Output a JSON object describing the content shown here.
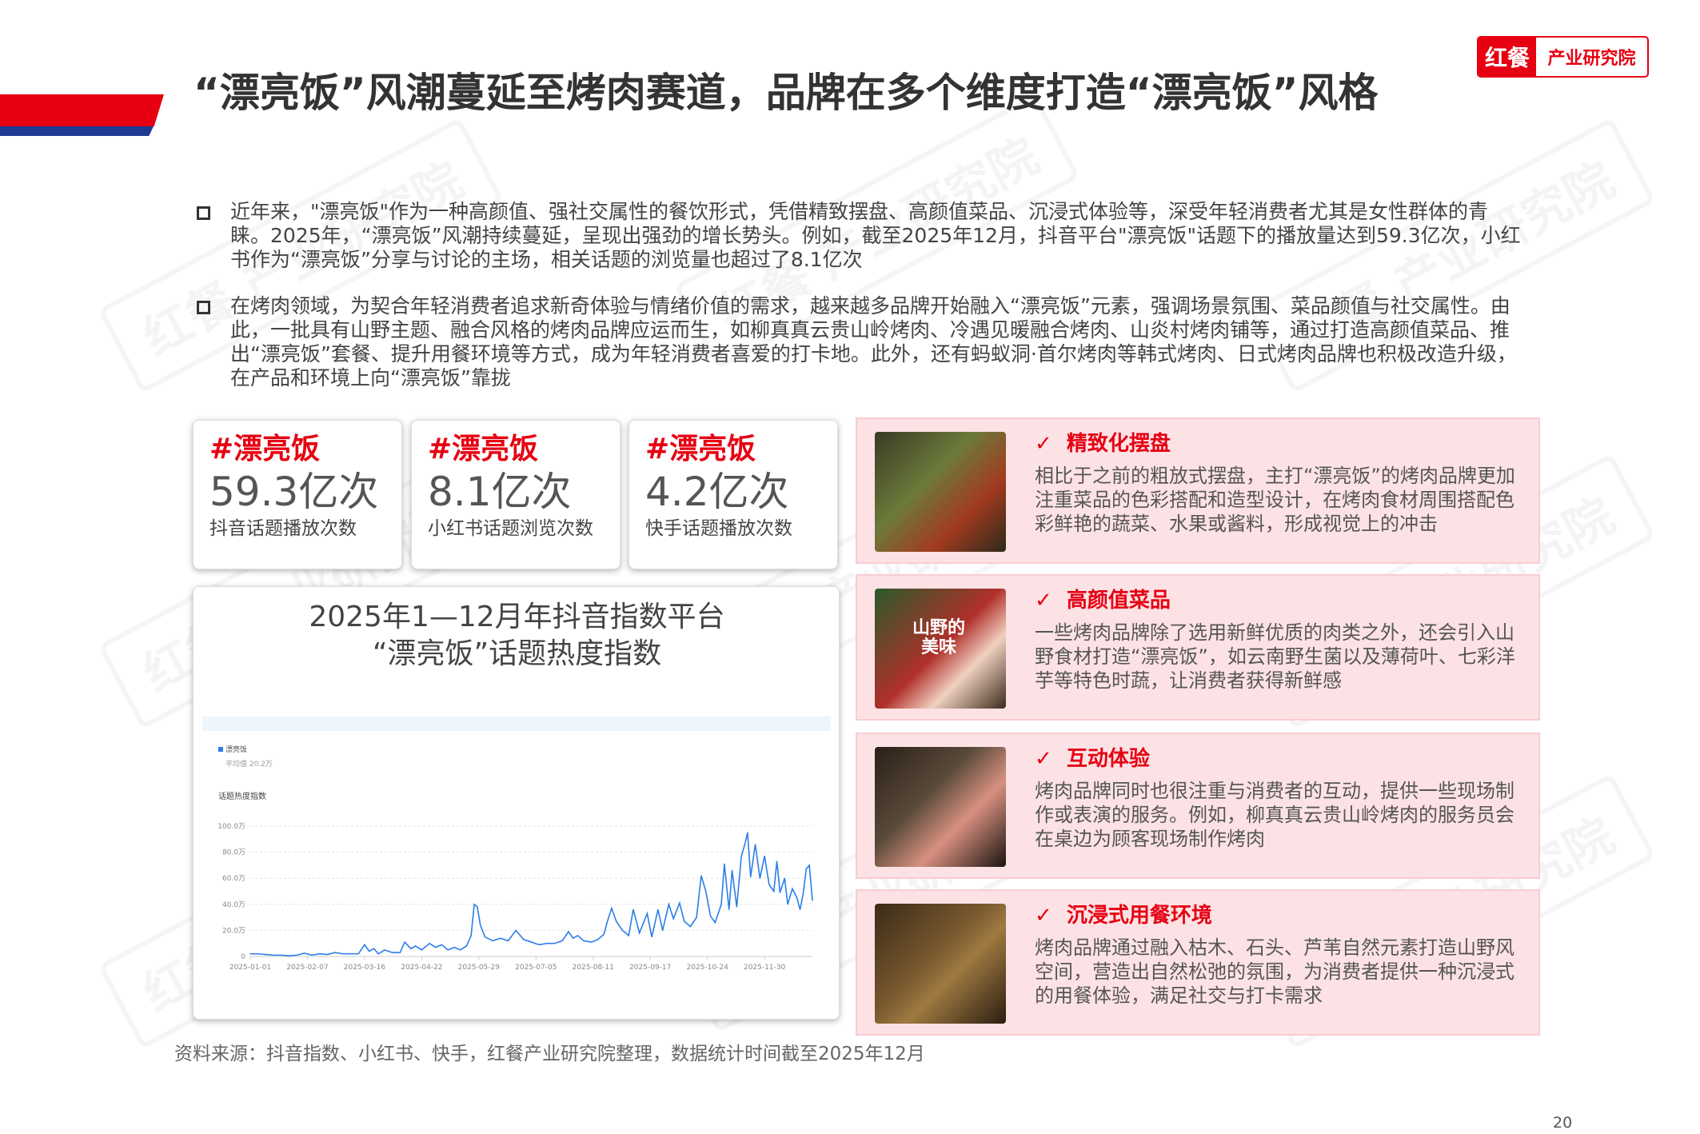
{
  "header": {
    "title": "“漂亮饭”风潮蔓延至烤肉赛道，品牌在多个维度打造“漂亮饭”风格",
    "logo": {
      "left": "红餐",
      "right": "产业研究院"
    }
  },
  "watermark": "红餐 产业研究院",
  "bullets": [
    "近年来，\"漂亮饭\"作为一种高颜值、强社交属性的餐饮形式，凭借精致摆盘、高颜值菜品、沉浸式体验等，深受年轻消费者尤其是女性群体的青睐。2025年，“漂亮饭”风潮持续蔓延，呈现出强劲的增长势头。例如，截至2025年12月，抖音平台\"漂亮饭\"话题下的播放量达到59.3亿次，小红书作为“漂亮饭”分享与讨论的主场，相关话题的浏览量也超过了8.1亿次",
    "在烤肉领域，为契合年轻消费者追求新奇体验与情绪价值的需求，越来越多品牌开始融入“漂亮饭”元素，强调场景氛围、菜品颜值与社交属性。由此，一批具有山野主题、融合风格的烤肉品牌应运而生，如柳真真云贵山岭烤肉、冷遇见暖融合烤肉、山炎村烤肉铺等，通过打造高颜值菜品、推出“漂亮饭”套餐、提升用餐环境等方式，成为年轻消费者喜爱的打卡地。此外，还有蚂蚁洞·首尔烤肉等韩式烤肉、日式烤肉品牌也积极改造升级，在产品和环境上向“漂亮饭”靠拢"
  ],
  "stats": [
    {
      "tag": "#漂亮饭",
      "value": "59.3亿次",
      "label": "抖音话题播放次数"
    },
    {
      "tag": "#漂亮饭",
      "value": "8.1亿次",
      "label": "小红书话题浏览次数"
    },
    {
      "tag": "#漂亮饭",
      "value": "4.2亿次",
      "label": "快手话题播放次数"
    }
  ],
  "chart": {
    "title_line1": "2025年1—12月年抖音指数平台",
    "title_line2": "“漂亮饭”话题热度指数"
  },
  "chart_data": {
    "type": "line",
    "legend": "漂亮饭",
    "average": "平均值 20.2万",
    "ylabel": "话题热度指数",
    "series_color": "#2b7de9",
    "ylim": [
      0,
      100
    ],
    "yunit": "万",
    "yticks": [
      "0",
      "20.0万",
      "40.0万",
      "60.0万",
      "80.0万",
      "100.0万"
    ],
    "xlim": [
      "2025-01-01",
      "2025-12-31"
    ],
    "xticks": [
      "2025-01-01",
      "2025-02-07",
      "2025-03-16",
      "2025-04-22",
      "2025-05-29",
      "2025-07-05",
      "2025-08-11",
      "2025-09-17",
      "2025-10-24",
      "2025-11-30"
    ],
    "grid": true,
    "x": [
      "2025-01-01",
      "2025-01-06",
      "2025-01-11",
      "2025-01-16",
      "2025-01-21",
      "2025-01-26",
      "2025-01-31",
      "2025-02-05",
      "2025-02-10",
      "2025-02-15",
      "2025-02-20",
      "2025-02-25",
      "2025-03-02",
      "2025-03-07",
      "2025-03-12",
      "2025-03-16",
      "2025-03-19",
      "2025-03-22",
      "2025-03-25",
      "2025-03-29",
      "2025-04-03",
      "2025-04-08",
      "2025-04-11",
      "2025-04-15",
      "2025-04-18",
      "2025-04-22",
      "2025-04-27",
      "2025-05-01",
      "2025-05-05",
      "2025-05-09",
      "2025-05-13",
      "2025-05-17",
      "2025-05-21",
      "2025-05-24",
      "2025-05-26",
      "2025-05-28",
      "2025-05-30",
      "2025-06-02",
      "2025-06-07",
      "2025-06-12",
      "2025-06-17",
      "2025-06-22",
      "2025-06-27",
      "2025-07-02",
      "2025-07-07",
      "2025-07-12",
      "2025-07-17",
      "2025-07-22",
      "2025-07-26",
      "2025-07-29",
      "2025-08-01",
      "2025-08-05",
      "2025-08-10",
      "2025-08-14",
      "2025-08-18",
      "2025-08-20",
      "2025-08-23",
      "2025-08-26",
      "2025-08-30",
      "2025-09-03",
      "2025-09-06",
      "2025-09-10",
      "2025-09-15",
      "2025-09-18",
      "2025-09-22",
      "2025-09-25",
      "2025-09-29",
      "2025-10-02",
      "2025-10-06",
      "2025-10-09",
      "2025-10-13",
      "2025-10-17",
      "2025-10-20",
      "2025-10-23",
      "2025-10-26",
      "2025-10-29",
      "2025-11-02",
      "2025-11-04",
      "2025-11-07",
      "2025-11-09",
      "2025-11-12",
      "2025-11-15",
      "2025-11-17",
      "2025-11-19",
      "2025-11-21",
      "2025-11-24",
      "2025-11-27",
      "2025-11-30",
      "2025-12-03",
      "2025-12-06",
      "2025-12-08",
      "2025-12-10",
      "2025-12-13",
      "2025-12-15",
      "2025-12-18",
      "2025-12-21",
      "2025-12-23",
      "2025-12-25",
      "2025-12-27",
      "2025-12-29",
      "2025-12-31"
    ],
    "y": [
      2,
      2,
      1.5,
      1,
      1,
      0.5,
      1,
      2.5,
      1,
      2,
      1.5,
      3,
      2,
      2,
      2,
      9,
      4,
      6,
      2,
      5,
      3,
      3,
      11,
      6,
      8,
      5,
      10,
      7,
      9,
      5,
      7,
      5,
      8,
      16,
      40,
      38,
      24,
      15,
      12,
      14,
      12,
      20,
      13,
      11,
      9,
      10,
      10,
      12,
      19,
      14,
      16,
      12,
      11,
      13,
      17,
      26,
      37,
      27,
      20,
      16,
      36,
      18,
      33,
      15,
      36,
      20,
      40,
      29,
      41,
      27,
      23,
      30,
      62,
      50,
      31,
      26,
      40,
      71,
      36,
      66,
      38,
      77,
      85,
      95,
      61,
      86,
      60,
      77,
      55,
      50,
      73,
      49,
      60,
      40,
      52,
      45,
      36,
      48,
      67,
      70,
      43
    ]
  },
  "features": [
    {
      "check": "✓",
      "title": "精致化摆盘",
      "body": "相比于之前的粗放式摆盘，主打“漂亮饭”的烤肉品牌更加注重菜品的色彩搭配和造型设计，在烤肉食材周围搭配色彩鲜艳的蔬菜、水果或酱料，形成视觉上的冲击"
    },
    {
      "check": "✓",
      "title": "高颜值菜品",
      "body": "一些烤肉品牌除了选用新鲜优质的肉类之外，还会引入山野食材打造“漂亮饭”，如云南野生菌以及薄荷叶、七彩洋芋等特色时蔬，让消费者获得新鲜感",
      "photo_text": "山野的美味"
    },
    {
      "check": "✓",
      "title": "互动体验",
      "body": "烤肉品牌同时也很注重与消费者的互动，提供一些现场制作或表演的服务。例如，柳真真云贵山岭烤肉的服务员会在桌边为顾客现场制作烤肉"
    },
    {
      "check": "✓",
      "title": "沉浸式用餐环境",
      "body": "烤肉品牌通过融入枯木、石头、芦苇自然元素打造山野风空间，营造出自然松弛的氛围，为消费者提供一种沉浸式的用餐体验，满足社交与打卡需求"
    }
  ],
  "source": "资料来源：抖音指数、小红书、快手，红餐产业研究院整理，数据统计时间截至2025年12月",
  "page_number": "20",
  "colors": {
    "brand_red": "#e60012",
    "brand_blue": "#1d3a94",
    "panel_pink": "#fde2e5"
  }
}
